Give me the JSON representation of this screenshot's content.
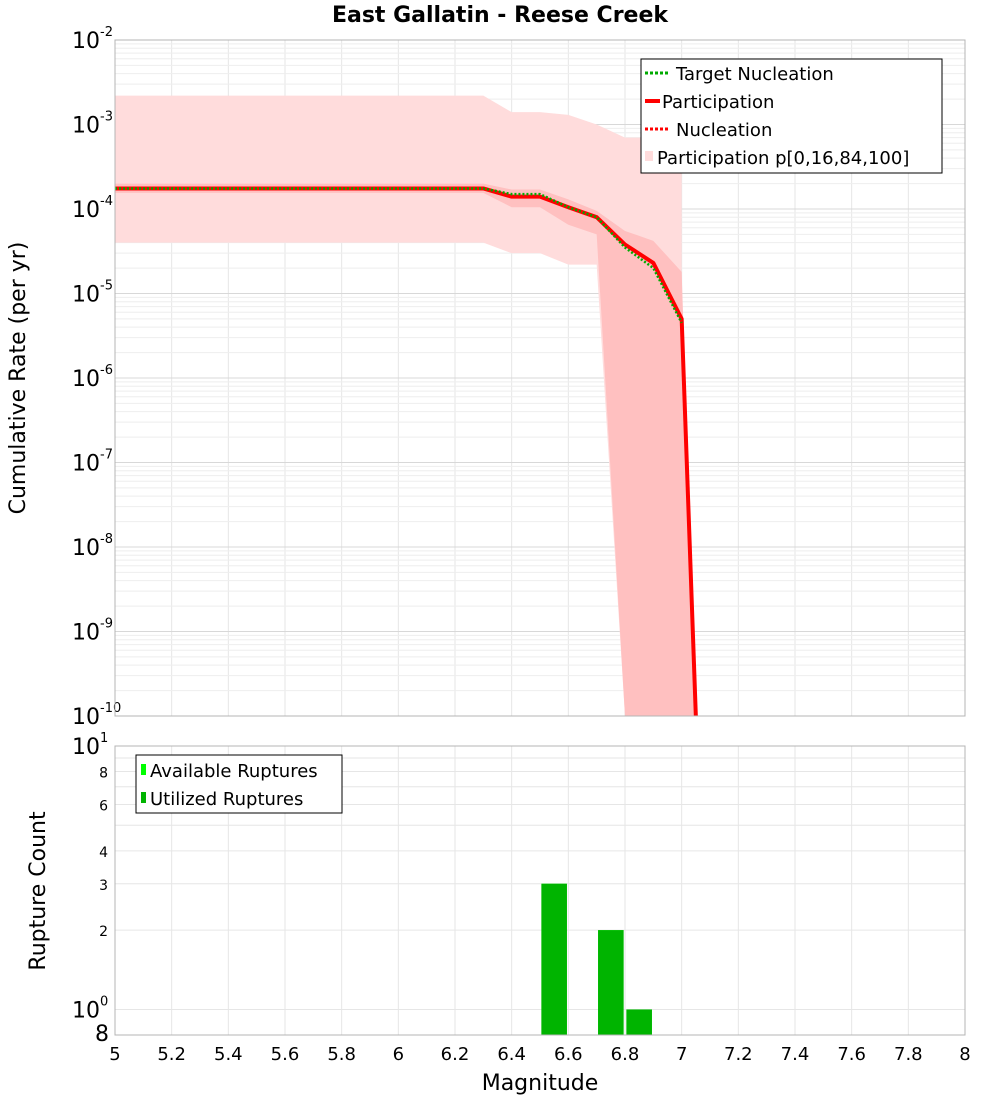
{
  "chart_data": [
    {
      "type": "line",
      "title": "East Gallatin - Reese Creek",
      "xlabel": "",
      "ylabel": "Cumulative Rate (per yr)",
      "xlim": [
        5,
        8
      ],
      "ylim": [
        1e-10,
        0.01
      ],
      "yscale": "log",
      "y_tick_exponents": [
        "-2",
        "-3",
        "-4",
        "-5",
        "-6",
        "-7",
        "-8",
        "-9",
        "-10"
      ],
      "y_tick_base": "10",
      "legend": {
        "position": "top-right",
        "entries": [
          "Target Nucleation",
          "Participation",
          "Nucleation",
          "Participation p[0,16,84,100]"
        ]
      },
      "series": [
        {
          "name": "Target Nucleation",
          "style": "dotted",
          "color": "#00aa00",
          "x": [
            5.0,
            6.3,
            6.4,
            6.5,
            6.6,
            6.7,
            6.8,
            6.9,
            7.0
          ],
          "y": [
            0.000175,
            0.000175,
            0.00015,
            0.00015,
            0.000105,
            8e-05,
            3.5e-05,
            2e-05,
            4.5e-06
          ]
        },
        {
          "name": "Participation",
          "style": "solid",
          "color": "#ff0000",
          "x": [
            5.0,
            6.3,
            6.4,
            6.5,
            6.6,
            6.7,
            6.8,
            6.9,
            7.0,
            7.05
          ],
          "y": [
            0.000175,
            0.000175,
            0.00014,
            0.00014,
            0.000105,
            8e-05,
            3.8e-05,
            2.3e-05,
            5e-06,
            1e-10
          ]
        },
        {
          "name": "Nucleation",
          "style": "dotted",
          "color": "#ff0000",
          "x": [
            5.0,
            6.3,
            6.4,
            6.5,
            6.6,
            6.7,
            6.8,
            6.9,
            7.0,
            7.05
          ],
          "y": [
            0.000175,
            0.000175,
            0.00014,
            0.00014,
            0.000105,
            8e-05,
            3.8e-05,
            2.3e-05,
            5e-06,
            1e-10
          ]
        }
      ],
      "bands": [
        {
          "name": "Participation p[0,100]",
          "color": "#ffdcdc",
          "x": [
            5.0,
            6.3,
            6.4,
            6.5,
            6.6,
            6.7,
            6.8,
            6.9,
            7.0
          ],
          "lower": [
            4e-05,
            4e-05,
            3e-05,
            3e-05,
            2.2e-05,
            2.2e-05,
            1e-10,
            1e-10,
            1e-10
          ],
          "upper": [
            0.0022,
            0.0022,
            0.0014,
            0.0014,
            0.0013,
            0.001,
            0.0007,
            0.0007,
            0.0007
          ]
        },
        {
          "name": "Participation p[16,84]",
          "color": "#ffc0c0",
          "x": [
            5.0,
            6.3,
            6.4,
            6.5,
            6.6,
            6.7,
            6.8,
            6.9,
            7.0,
            7.05
          ],
          "lower": [
            0.000155,
            0.000155,
            0.000105,
            0.000105,
            6.5e-05,
            5e-05,
            1e-10,
            1e-10,
            1e-10,
            1e-10
          ],
          "upper": [
            0.0002,
            0.0002,
            0.00017,
            0.00017,
            0.00013,
            9.5e-05,
            5.5e-05,
            4.2e-05,
            1.8e-05,
            1e-10
          ]
        }
      ]
    },
    {
      "type": "bar",
      "title": "",
      "xlabel": "Magnitude",
      "ylabel": "Rupture Count",
      "xlim": [
        5,
        8
      ],
      "ylim": [
        0.8,
        10
      ],
      "yscale": "log",
      "x_ticks": [
        "5",
        "5.2",
        "5.4",
        "5.6",
        "5.8",
        "6",
        "6.2",
        "6.4",
        "6.6",
        "6.8",
        "7",
        "7.2",
        "7.4",
        "7.6",
        "7.8",
        "8"
      ],
      "y_ticks": [
        {
          "value": 10,
          "base": "10",
          "exp": "1"
        },
        {
          "value": 8,
          "label": "8"
        },
        {
          "value": 6,
          "label": "6"
        },
        {
          "value": 4,
          "label": "4"
        },
        {
          "value": 3,
          "label": "3"
        },
        {
          "value": 2,
          "label": "2"
        },
        {
          "value": 1,
          "base": "10",
          "exp": "0"
        },
        {
          "value": 0.8,
          "label": "8"
        }
      ],
      "legend": {
        "position": "top-left",
        "entries": [
          "Available Ruptures",
          "Utilized Ruptures"
        ]
      },
      "series": [
        {
          "name": "Available Ruptures",
          "color": "#00ff00",
          "x": [
            6.55,
            6.75,
            6.85
          ],
          "values": [
            3,
            2,
            1
          ]
        },
        {
          "name": "Utilized Ruptures",
          "color": "#00b400",
          "x": [
            6.55,
            6.75,
            6.85
          ],
          "values": [
            3,
            2,
            1
          ]
        }
      ],
      "bar_width": 0.09
    }
  ]
}
